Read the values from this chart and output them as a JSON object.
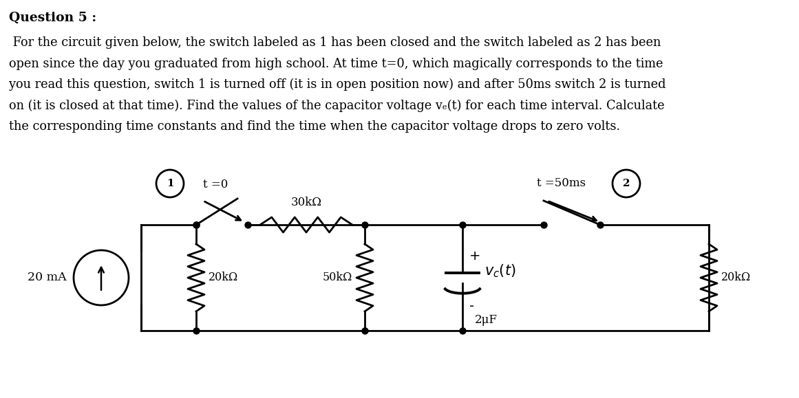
{
  "title": "Question 5 :",
  "lines": [
    " For the circuit given below, the switch labeled as 1 has been closed and the switch labeled as 2 has been",
    "open since the day you graduated from high school. At time t=0, which magically corresponds to the time",
    "you read this question, switch 1 is turned off (it is in open position now) and after 50ms switch 2 is turned",
    "on (it is closed at that time). Find the values of the capacitor voltage vₑ(t) for each time interval. Calculate",
    "the corresponding time constants and find the time when the capacitor voltage drops to zero volts."
  ],
  "bg_color": "#ffffff",
  "text_color": "#000000",
  "title_fontsize": 13.5,
  "body_fontsize": 12.8,
  "circuit": {
    "source_label": "20 mA",
    "r1_label": "20kΩ",
    "r2_label": "30kΩ",
    "r3_label": "50kΩ",
    "r4_label": "20kΩ",
    "cap_label": "2μF",
    "switch1_label": "t =0",
    "switch2_label": "t =50ms",
    "node1": "1",
    "node2": "2",
    "plus": "+",
    "minus": "-"
  }
}
